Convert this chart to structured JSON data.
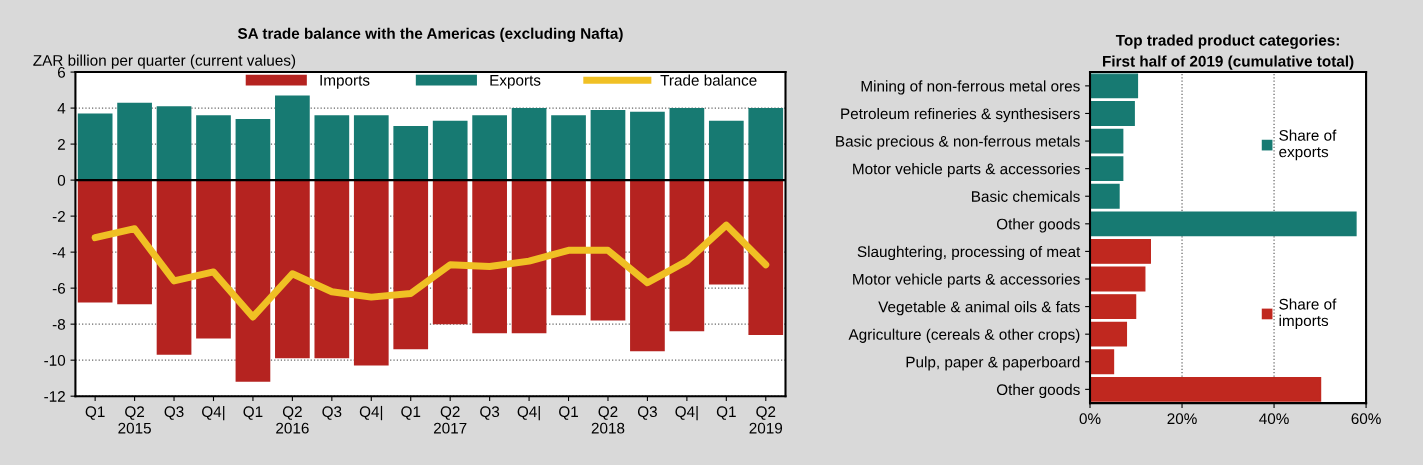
{
  "chart_data": [
    {
      "type": "bar",
      "title": "SA trade balance with the Americas (excluding Nafta)",
      "ylabel": "ZAR billion per quarter (current values)",
      "categories": [
        "Q1",
        "Q2\n2015",
        "Q3",
        "Q4|",
        "Q1",
        "Q2\n2016",
        "Q3",
        "Q4|",
        "Q1",
        "Q2\n2017",
        "Q3",
        "Q4|",
        "Q1",
        "Q2\n2018",
        "Q3",
        "Q4|",
        "Q1",
        "Q2\n2019"
      ],
      "series": [
        {
          "name": "Imports",
          "color": "#b52320",
          "values": [
            -6.8,
            -6.9,
            -9.7,
            -8.8,
            -11.2,
            -9.9,
            -9.9,
            -10.3,
            -9.4,
            -8.0,
            -8.5,
            -8.5,
            -7.5,
            -7.8,
            -9.5,
            -8.4,
            -5.8,
            -8.6
          ]
        },
        {
          "name": "Exports",
          "color": "#177a72",
          "values": [
            3.7,
            4.3,
            4.1,
            3.6,
            3.4,
            4.7,
            3.6,
            3.6,
            3.0,
            3.3,
            3.6,
            4.0,
            3.6,
            3.9,
            3.8,
            4.0,
            3.3,
            4.0
          ]
        },
        {
          "name": "Trade balance",
          "type": "line",
          "color": "#f0c024",
          "values": [
            -3.2,
            -2.7,
            -5.6,
            -5.1,
            -7.6,
            -5.2,
            -6.2,
            -6.5,
            -6.3,
            -4.7,
            -4.8,
            -4.5,
            -3.9,
            -3.9,
            -5.7,
            -4.5,
            -2.5,
            -4.7
          ]
        }
      ],
      "stacked": true,
      "ylim": [
        -12,
        6
      ],
      "yticks": [
        -12,
        -10,
        -8,
        -6,
        -4,
        -2,
        0,
        2,
        4,
        6
      ],
      "grid": "y",
      "legend": "top",
      "ref_lines": [
        {
          "axis": "y",
          "value": 0,
          "color": "#000000"
        }
      ]
    },
    {
      "type": "bar",
      "orientation": "horizontal",
      "title": "Top traded product categories:\nFirst half of 2019 (cumulative total)",
      "categories": [
        "Mining of non-ferrous metal ores",
        "Petroleum refineries & synthesisers",
        "Basic precious & non-ferrous metals",
        "Motor vehicle parts & accessories",
        "Basic chemicals",
        "Other goods",
        "Slaughtering, processing of meat",
        "Motor vehicle parts & accessories",
        "Vegetable & animal oils & fats",
        "Agriculture (cereals & other crops)",
        "Pulp, paper & paperboard",
        "Other goods"
      ],
      "series": [
        {
          "name": "Share of\nexports",
          "color": "#177a72",
          "values": [
            10.3,
            9.6,
            7.1,
            7.1,
            6.3,
            57.8,
            null,
            null,
            null,
            null,
            null,
            null
          ]
        },
        {
          "name": "Share of\nimports",
          "color": "#c0281f",
          "values": [
            null,
            null,
            null,
            null,
            null,
            null,
            13.1,
            11.9,
            9.9,
            7.9,
            5.1,
            50.1
          ]
        }
      ],
      "xlim": [
        0,
        60
      ],
      "xticks": [
        {
          "value": 0,
          "label": "0%"
        },
        {
          "value": 20,
          "label": "20%"
        },
        {
          "value": 40,
          "label": "40%"
        },
        {
          "value": 60,
          "label": "60%"
        }
      ],
      "grid": "x",
      "legend": "right"
    }
  ]
}
